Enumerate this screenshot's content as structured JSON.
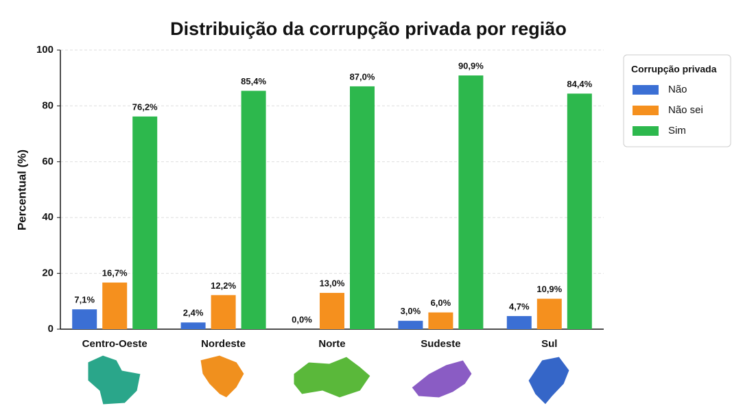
{
  "chart_data": {
    "type": "bar",
    "title": "Distribuição da corrupção privada por região",
    "ylabel": "Percentual (%)",
    "categories": [
      "Centro-Oeste",
      "Nordeste",
      "Norte",
      "Sudeste",
      "Sul"
    ],
    "series": [
      {
        "name": "Não",
        "color": "#3b6fd4",
        "values": [
          7.1,
          2.4,
          0.0,
          3.0,
          4.7
        ],
        "value_labels": [
          "7,1%",
          "2,4%",
          "0,0%",
          "3,0%",
          "4,7%"
        ]
      },
      {
        "name": "Não sei",
        "color": "#f5901e",
        "values": [
          16.7,
          12.2,
          13.0,
          6.0,
          10.9
        ],
        "value_labels": [
          "16,7%",
          "12,2%",
          "13,0%",
          "6,0%",
          "10,9%"
        ]
      },
      {
        "name": "Sim",
        "color": "#2db84d",
        "values": [
          76.2,
          85.4,
          87.0,
          90.9,
          84.4
        ],
        "value_labels": [
          "76,2%",
          "85,4%",
          "87,0%",
          "90,9%",
          "84,4%"
        ]
      }
    ],
    "legend_title": "Corrupção privada",
    "legend": "outside right",
    "ylim": [
      0,
      100
    ],
    "yticks": [
      0,
      20,
      40,
      60,
      80,
      100
    ],
    "grid": true
  }
}
